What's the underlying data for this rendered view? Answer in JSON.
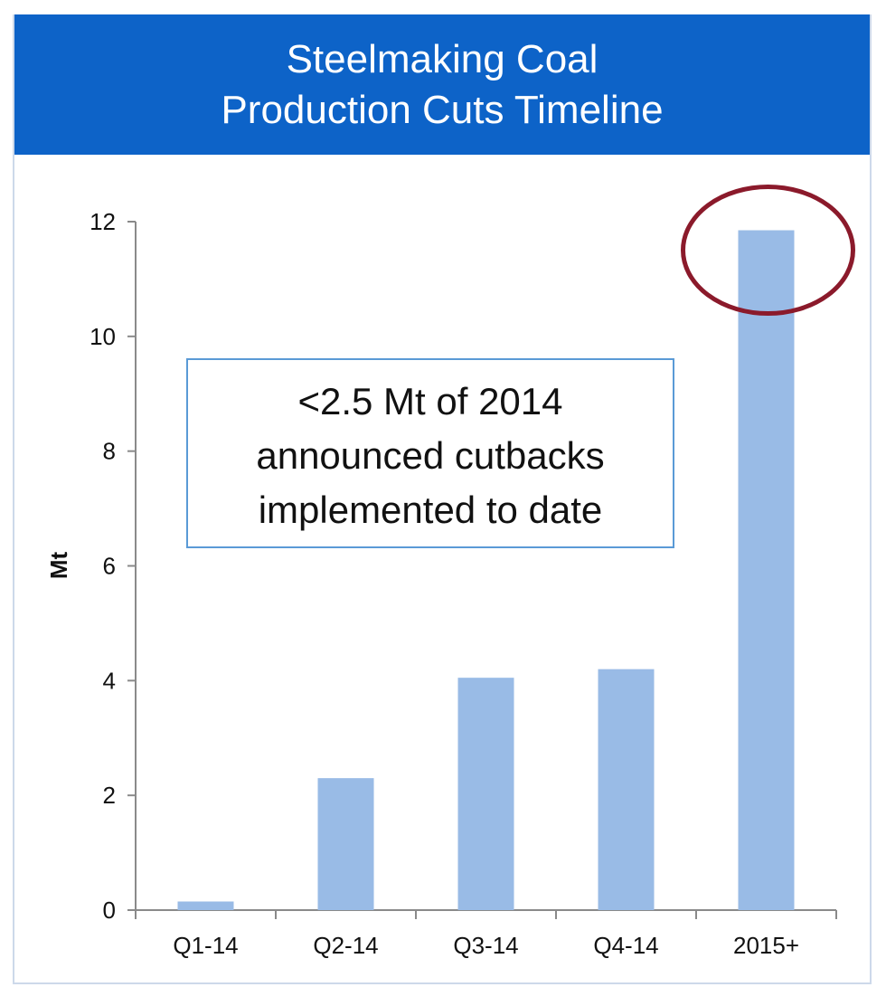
{
  "chart_data": {
    "type": "bar",
    "title": [
      "Steelmaking Coal",
      "Production Cuts Timeline"
    ],
    "ylabel": "Mt",
    "xlabel": "",
    "categories": [
      "Q1-14",
      "Q2-14",
      "Q3-14",
      "Q4-14",
      "2015+"
    ],
    "values": [
      0.15,
      2.3,
      4.05,
      4.2,
      11.85
    ],
    "ylim": [
      0,
      12
    ],
    "yticks": [
      "0",
      "2",
      "4",
      "6",
      "8",
      "10",
      "12"
    ],
    "grid": false,
    "legend": "none",
    "annotation": [
      "<2.5 Mt of 2014",
      "announced cutbacks",
      "implemented to date"
    ],
    "highlight_category": "2015+",
    "colors": {
      "bar": "#99bbe6",
      "title_bg": "#0d63c8",
      "highlight_ring": "#8b1a2b",
      "annotation_border": "#5a9ad6"
    }
  }
}
